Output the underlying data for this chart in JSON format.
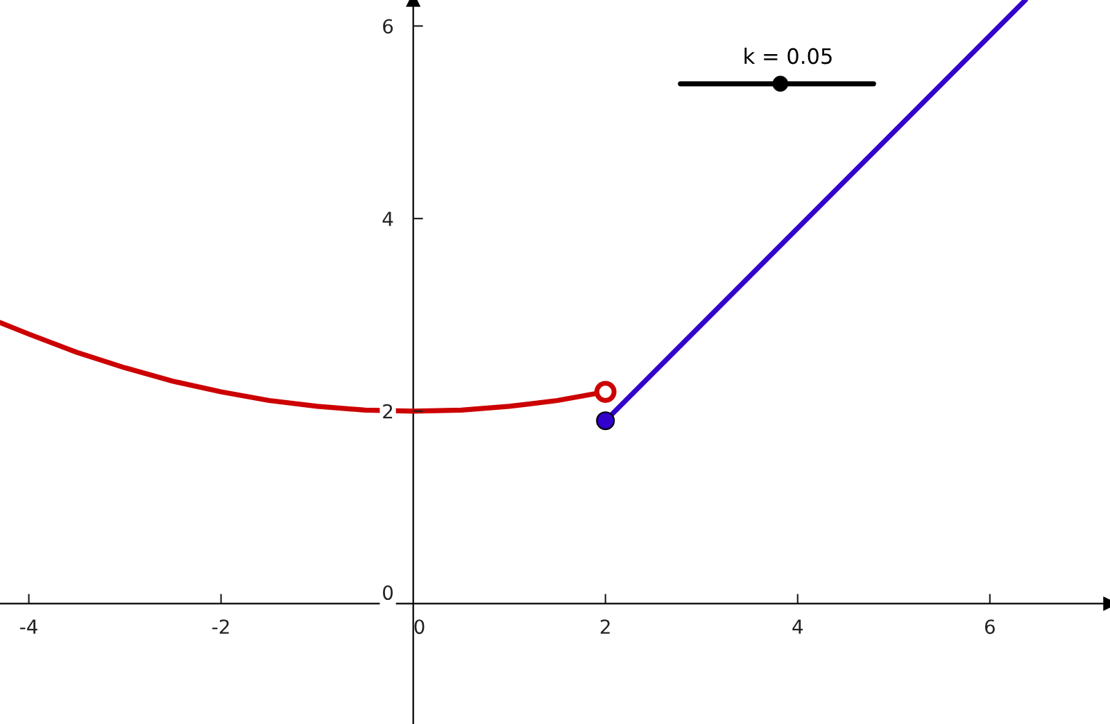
{
  "chart_data": {
    "type": "line",
    "annotations": [
      "k = 0.05"
    ],
    "series": [
      {
        "color": "#cc0000",
        "x": [
          -4.3,
          -4,
          -3.5,
          -3,
          -2.5,
          -2,
          -1.5,
          -1,
          -0.5,
          0,
          0.5,
          1,
          1.5,
          2
        ],
        "values": [
          2.92,
          2.8,
          2.61,
          2.45,
          2.31,
          2.2,
          2.11,
          2.05,
          2.01,
          2.0,
          2.01,
          2.05,
          2.11,
          2.2
        ]
      },
      {
        "type": "scatter",
        "color": "#cc0000",
        "colors": [
          "#ffffff"
        ],
        "marker": "circle",
        "x": [
          2
        ],
        "values": [
          2.2
        ]
      },
      {
        "color": "#3300cc",
        "x": [
          2,
          6.37
        ],
        "values": [
          1.9,
          6.27
        ]
      },
      {
        "type": "scatter",
        "color": "#3300cc",
        "marker": "circle",
        "x": [
          2
        ],
        "values": [
          1.9
        ]
      },
      {
        "color": "#000000",
        "x": [
          2.78,
          4.79
        ],
        "values": [
          5.4,
          5.4
        ]
      },
      {
        "type": "scatter",
        "color": "#000000",
        "marker": "circle",
        "x": [
          3.82
        ],
        "values": [
          5.4
        ]
      }
    ],
    "xlim": [
      -4.3,
      7.25
    ],
    "ylim": [
      -1.25,
      6.27
    ],
    "xticks": [
      -4,
      -2,
      0,
      2,
      4,
      6
    ],
    "yticks": [
      0,
      2,
      4,
      6
    ],
    "grid": false,
    "legend": false
  }
}
